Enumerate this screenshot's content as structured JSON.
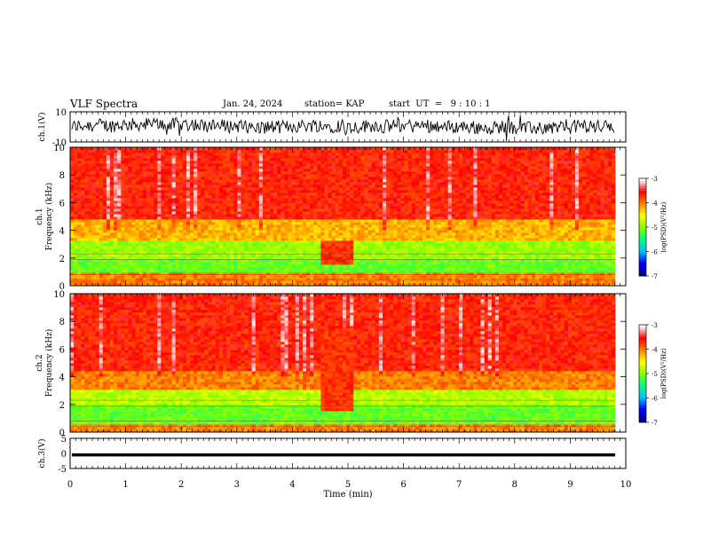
{
  "header": {
    "title": "VLF Spectra",
    "date": "Jan. 24, 2024",
    "station": "station= KAP",
    "start_ut": "start  UT  =   9 : 10 : 1"
  },
  "chart_data": [
    {
      "type": "line",
      "panel": "ch1-waveform",
      "ylabel": "ch.1(V)",
      "ylim": [
        -10,
        10
      ],
      "yticks": [
        "10",
        "-10"
      ],
      "xlim": [
        0,
        10
      ],
      "series": [
        {
          "color": "#000000"
        }
      ]
    },
    {
      "type": "heatmap",
      "panel": "ch1-spectrogram",
      "ylabel": [
        "ch.1",
        "Frequency  (kHz)"
      ],
      "ylim": [
        0,
        10
      ],
      "yticks": [
        "0",
        "2",
        "4",
        "6",
        "8",
        "10"
      ],
      "xlim": [
        0,
        9.8
      ],
      "colorbar": {
        "label": "log(PSD)(V²/Hz)",
        "ticks": [
          "-3",
          "-4",
          "-5",
          "-6",
          "-7"
        ],
        "range": [
          -7,
          -3
        ]
      },
      "bands": [
        {
          "from": 0.0,
          "to": 0.9,
          "level": -4.0
        },
        {
          "from": 0.9,
          "to": 2.0,
          "level": -5.1
        },
        {
          "from": 2.0,
          "to": 3.3,
          "level": -4.9
        },
        {
          "from": 3.3,
          "to": 4.8,
          "level": -4.2
        },
        {
          "from": 4.8,
          "to": 10.0,
          "level": -3.6
        }
      ],
      "feature": {
        "x_from": 4.5,
        "x_to": 5.1,
        "freq_from": 1.5,
        "freq_to": 3.2
      }
    },
    {
      "type": "heatmap",
      "panel": "ch2-spectrogram",
      "ylabel": [
        "ch.2",
        "Frequency  (kHz)"
      ],
      "ylim": [
        0,
        10
      ],
      "yticks": [
        "0",
        "2",
        "4",
        "6",
        "8",
        "10"
      ],
      "xlim": [
        0,
        9.8
      ],
      "colorbar": {
        "label": "log(PSD)(V²/Hz)",
        "ticks": [
          "-3",
          "-4",
          "-5",
          "-6",
          "-7"
        ],
        "range": [
          -7,
          -3
        ]
      },
      "bands": [
        {
          "from": 0.0,
          "to": 0.6,
          "level": -4.0
        },
        {
          "from": 0.6,
          "to": 1.9,
          "level": -5.1
        },
        {
          "from": 1.9,
          "to": 3.0,
          "level": -4.8
        },
        {
          "from": 3.0,
          "to": 4.5,
          "level": -4.0
        },
        {
          "from": 4.5,
          "to": 10.0,
          "level": -3.6
        }
      ],
      "feature": {
        "x_from": 4.5,
        "x_to": 5.1,
        "freq_from": 1.5,
        "freq_to": 7.5
      }
    },
    {
      "type": "line",
      "panel": "ch3-waveform",
      "ylabel": "ch.3(V)",
      "ylim": [
        -5,
        5
      ],
      "yticks": [
        "5",
        "0",
        "-5"
      ],
      "xlim": [
        0,
        10
      ],
      "series": [
        {
          "color": "#000000",
          "values_range": [
            -1.0,
            0.0
          ]
        }
      ]
    }
  ],
  "x_axis": {
    "label": "Time  (min)",
    "ticks": [
      "0",
      "1",
      "2",
      "3",
      "4",
      "5",
      "6",
      "7",
      "8",
      "9",
      "10"
    ]
  },
  "colors": {
    "background": "#ffffff",
    "axis": "#000000",
    "colormap": [
      "#000080",
      "#0000ff",
      "#00c0ff",
      "#00ff80",
      "#80ff00",
      "#ffff00",
      "#ff8000",
      "#ff0000",
      "#ffffff"
    ]
  }
}
